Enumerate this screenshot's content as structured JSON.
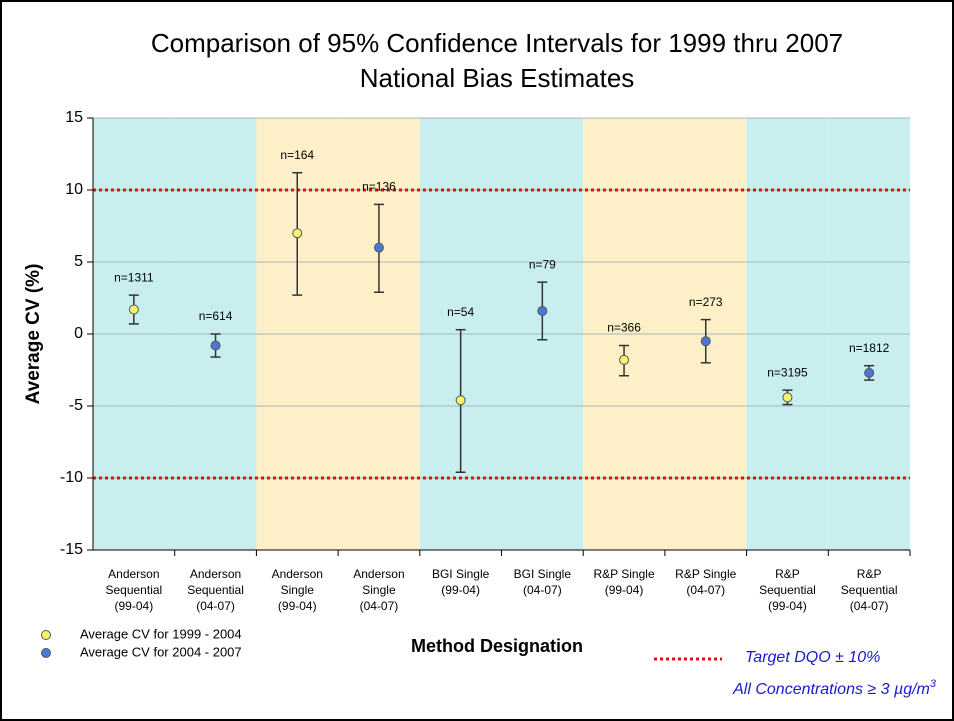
{
  "chart_data": {
    "type": "errorbar",
    "title": [
      "Comparison of 95% Confidence Intervals for 1999 thru 2007",
      "National Bias Estimates"
    ],
    "y_label": "Average CV (%)",
    "x_label": "Method Designation",
    "categories": [
      [
        "Anderson",
        "Sequential",
        "(99-04)"
      ],
      [
        "Anderson",
        "Sequential",
        "(04-07)"
      ],
      [
        "Anderson",
        "Single",
        "(99-04)"
      ],
      [
        "Anderson",
        "Single",
        "(04-07)"
      ],
      [
        "BGI Single",
        "(99-04)"
      ],
      [
        "BGI Single",
        "(04-07)"
      ],
      [
        "R&P Single",
        "(99-04)"
      ],
      [
        "R&P Single",
        "(04-07)"
      ],
      [
        "R&P",
        "Sequential",
        "(99-04)"
      ],
      [
        "R&P",
        "Sequential",
        "(04-07)"
      ]
    ],
    "band_colors": [
      "#c8eef0",
      "#fdf0c8"
    ],
    "series": [
      {
        "name": "Average CV for 1999 - 2004",
        "color": "#f5f56a",
        "values": [
          1.7,
          null,
          7.0,
          null,
          -4.6,
          null,
          -1.8,
          null,
          -4.4,
          null
        ],
        "lower": [
          0.7,
          null,
          2.7,
          null,
          -9.6,
          null,
          -2.9,
          null,
          -4.9,
          null
        ],
        "upper": [
          2.7,
          null,
          11.2,
          null,
          0.3,
          null,
          -0.8,
          null,
          -3.9,
          null
        ]
      },
      {
        "name": "Average CV for 2004 - 2007",
        "color": "#4a78d8",
        "values": [
          null,
          -0.8,
          null,
          6.0,
          null,
          1.6,
          null,
          -0.5,
          null,
          -2.7
        ],
        "lower": [
          null,
          -1.6,
          null,
          2.9,
          null,
          -0.4,
          null,
          -2.0,
          null,
          -3.2
        ],
        "upper": [
          null,
          0.0,
          null,
          9.0,
          null,
          3.6,
          null,
          1.0,
          null,
          -2.2
        ]
      }
    ],
    "n_labels": [
      "n=1311",
      "n=614",
      "n=164",
      "n=136",
      "n=54",
      "n=79",
      "n=366",
      "n=273",
      "n=3195",
      "n=1812"
    ],
    "reference_lines": [
      10,
      -10
    ],
    "reference_color": "#e01010",
    "reference_label": "Target DQO ± 10%",
    "note": "All Concentrations ≥ 3 µg/m",
    "note_superscript": "3",
    "ylim": [
      -15,
      15
    ],
    "yticks": [
      -15,
      -10,
      -5,
      0,
      5,
      10,
      15
    ],
    "grid": true
  }
}
